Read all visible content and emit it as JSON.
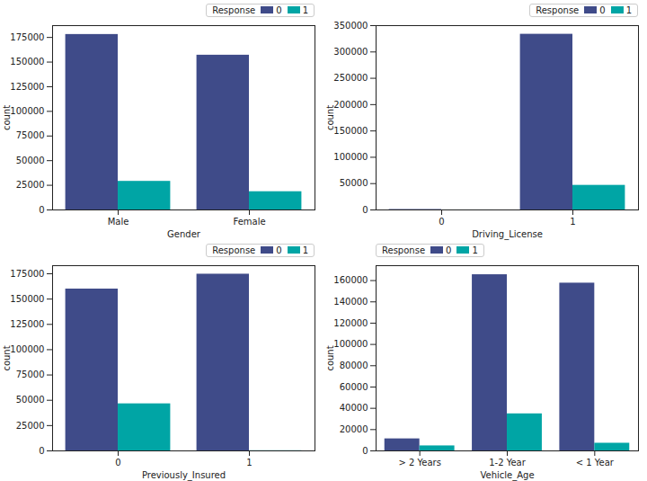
{
  "chart_data": [
    {
      "type": "bar",
      "xlabel": "Gender",
      "ylabel": "count",
      "categories": [
        "Male",
        "Female"
      ],
      "series": [
        {
          "name": "0",
          "color": "#3f4b89",
          "values": [
            178000,
            157000
          ]
        },
        {
          "name": "1",
          "color": "#00a5a5",
          "values": [
            29000,
            18500
          ]
        }
      ],
      "ylim": [
        0,
        187000
      ],
      "yticks": [
        0,
        25000,
        50000,
        75000,
        100000,
        125000,
        150000,
        175000
      ],
      "legend": "upper right",
      "legend_title": "Response"
    },
    {
      "type": "bar",
      "xlabel": "Driving_License",
      "ylabel": "count",
      "categories": [
        "0",
        "1"
      ],
      "series": [
        {
          "name": "0",
          "color": "#3f4b89",
          "values": [
            800,
            333600
          ]
        },
        {
          "name": "1",
          "color": "#00a5a5",
          "values": [
            40,
            46700
          ]
        }
      ],
      "ylim": [
        0,
        350000
      ],
      "yticks": [
        0,
        50000,
        100000,
        150000,
        200000,
        250000,
        300000,
        350000
      ],
      "legend": "upper right",
      "legend_title": "Response"
    },
    {
      "type": "bar",
      "xlabel": "Previously_Insured",
      "ylabel": "count",
      "categories": [
        "0",
        "1"
      ],
      "series": [
        {
          "name": "0",
          "color": "#3f4b89",
          "values": [
            159900,
            174600
          ]
        },
        {
          "name": "1",
          "color": "#00a5a5",
          "values": [
            46500,
            160
          ]
        }
      ],
      "ylim": [
        0,
        183000
      ],
      "yticks": [
        0,
        25000,
        50000,
        75000,
        100000,
        125000,
        150000,
        175000
      ],
      "legend": "upper right",
      "legend_title": "Response"
    },
    {
      "type": "bar",
      "xlabel": "Vehicle_Age",
      "ylabel": "count",
      "categories": [
        "> 2 Years",
        "1-2 Year",
        "< 1 Year"
      ],
      "series": [
        {
          "name": "0",
          "color": "#3f4b89",
          "values": [
            11300,
            165500,
            157600
          ]
        },
        {
          "name": "1",
          "color": "#00a5a5",
          "values": [
            4700,
            34800,
            7200
          ]
        }
      ],
      "ylim": [
        0,
        174000
      ],
      "yticks": [
        0,
        20000,
        40000,
        60000,
        80000,
        100000,
        120000,
        140000,
        160000
      ],
      "legend": "upper left",
      "legend_title": "Response"
    }
  ]
}
